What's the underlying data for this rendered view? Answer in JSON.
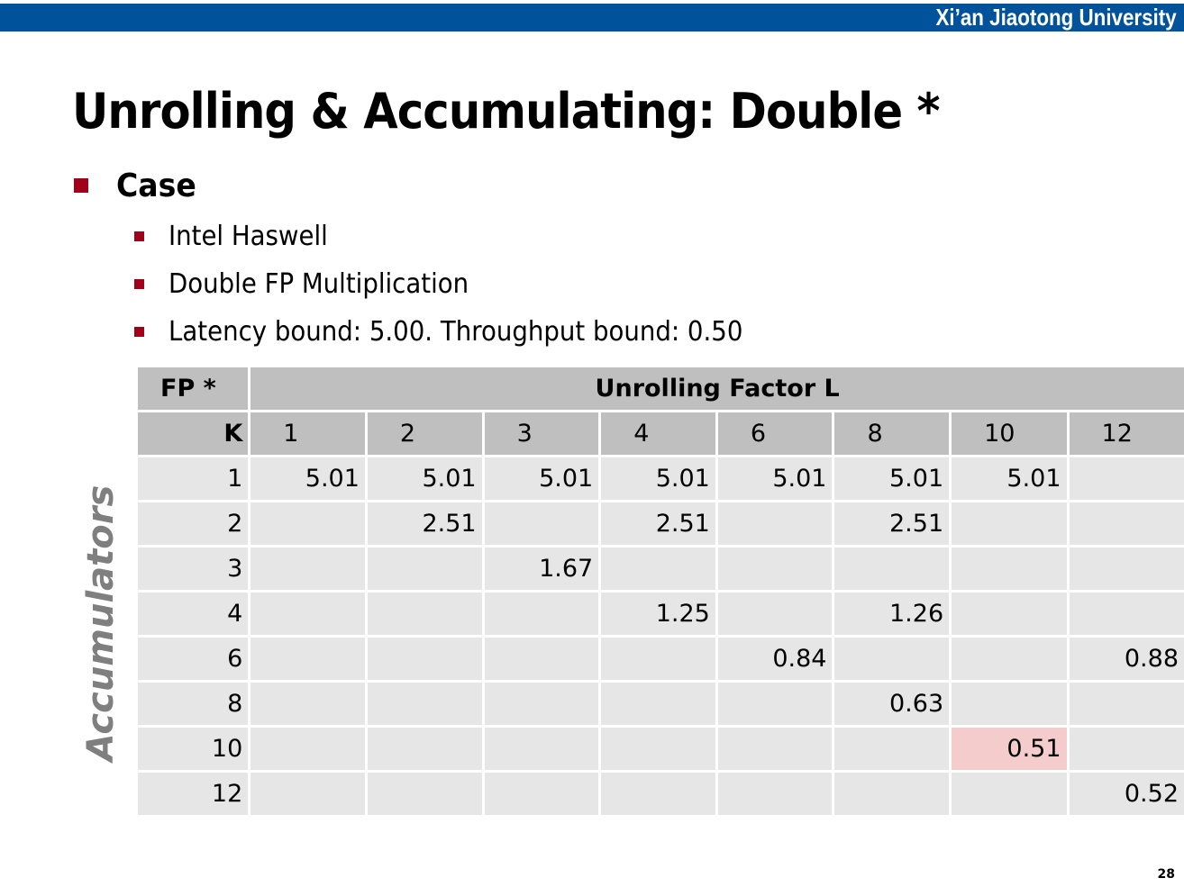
{
  "header": {
    "university": "Xi’an Jiaotong University",
    "bar_color": "#00529b"
  },
  "slide": {
    "title": "Unrolling & Accumulating: Double *",
    "bullet_main": "Case",
    "sub_bullets": [
      "Intel Haswell",
      "Double FP Multiplication",
      "Latency bound: 5.00.  Throughput bound: 0.50"
    ],
    "page_number": "28"
  },
  "table": {
    "corner": "FP *",
    "span_header": "Unrolling Factor L",
    "row_header": "K",
    "side_label": "Accumulators",
    "columns": [
      "1",
      "2",
      "3",
      "4",
      "6",
      "8",
      "10",
      "12"
    ],
    "rows": [
      {
        "k": "1",
        "cells": [
          "5.01",
          "5.01",
          "5.01",
          "5.01",
          "5.01",
          "5.01",
          "5.01",
          ""
        ]
      },
      {
        "k": "2",
        "cells": [
          "",
          "2.51",
          "",
          "2.51",
          "",
          "2.51",
          "",
          ""
        ]
      },
      {
        "k": "3",
        "cells": [
          "",
          "",
          "1.67",
          "",
          "",
          "",
          "",
          ""
        ]
      },
      {
        "k": "4",
        "cells": [
          "",
          "",
          "",
          "1.25",
          "",
          "1.26",
          "",
          ""
        ]
      },
      {
        "k": "6",
        "cells": [
          "",
          "",
          "",
          "",
          "0.84",
          "",
          "",
          "0.88"
        ]
      },
      {
        "k": "8",
        "cells": [
          "",
          "",
          "",
          "",
          "",
          "0.63",
          "",
          ""
        ]
      },
      {
        "k": "10",
        "cells": [
          "",
          "",
          "",
          "",
          "",
          "",
          "0.51",
          ""
        ]
      },
      {
        "k": "12",
        "cells": [
          "",
          "",
          "",
          "",
          "",
          "",
          "",
          "0.52"
        ]
      }
    ],
    "highlight_color": "#f4cccc"
  }
}
